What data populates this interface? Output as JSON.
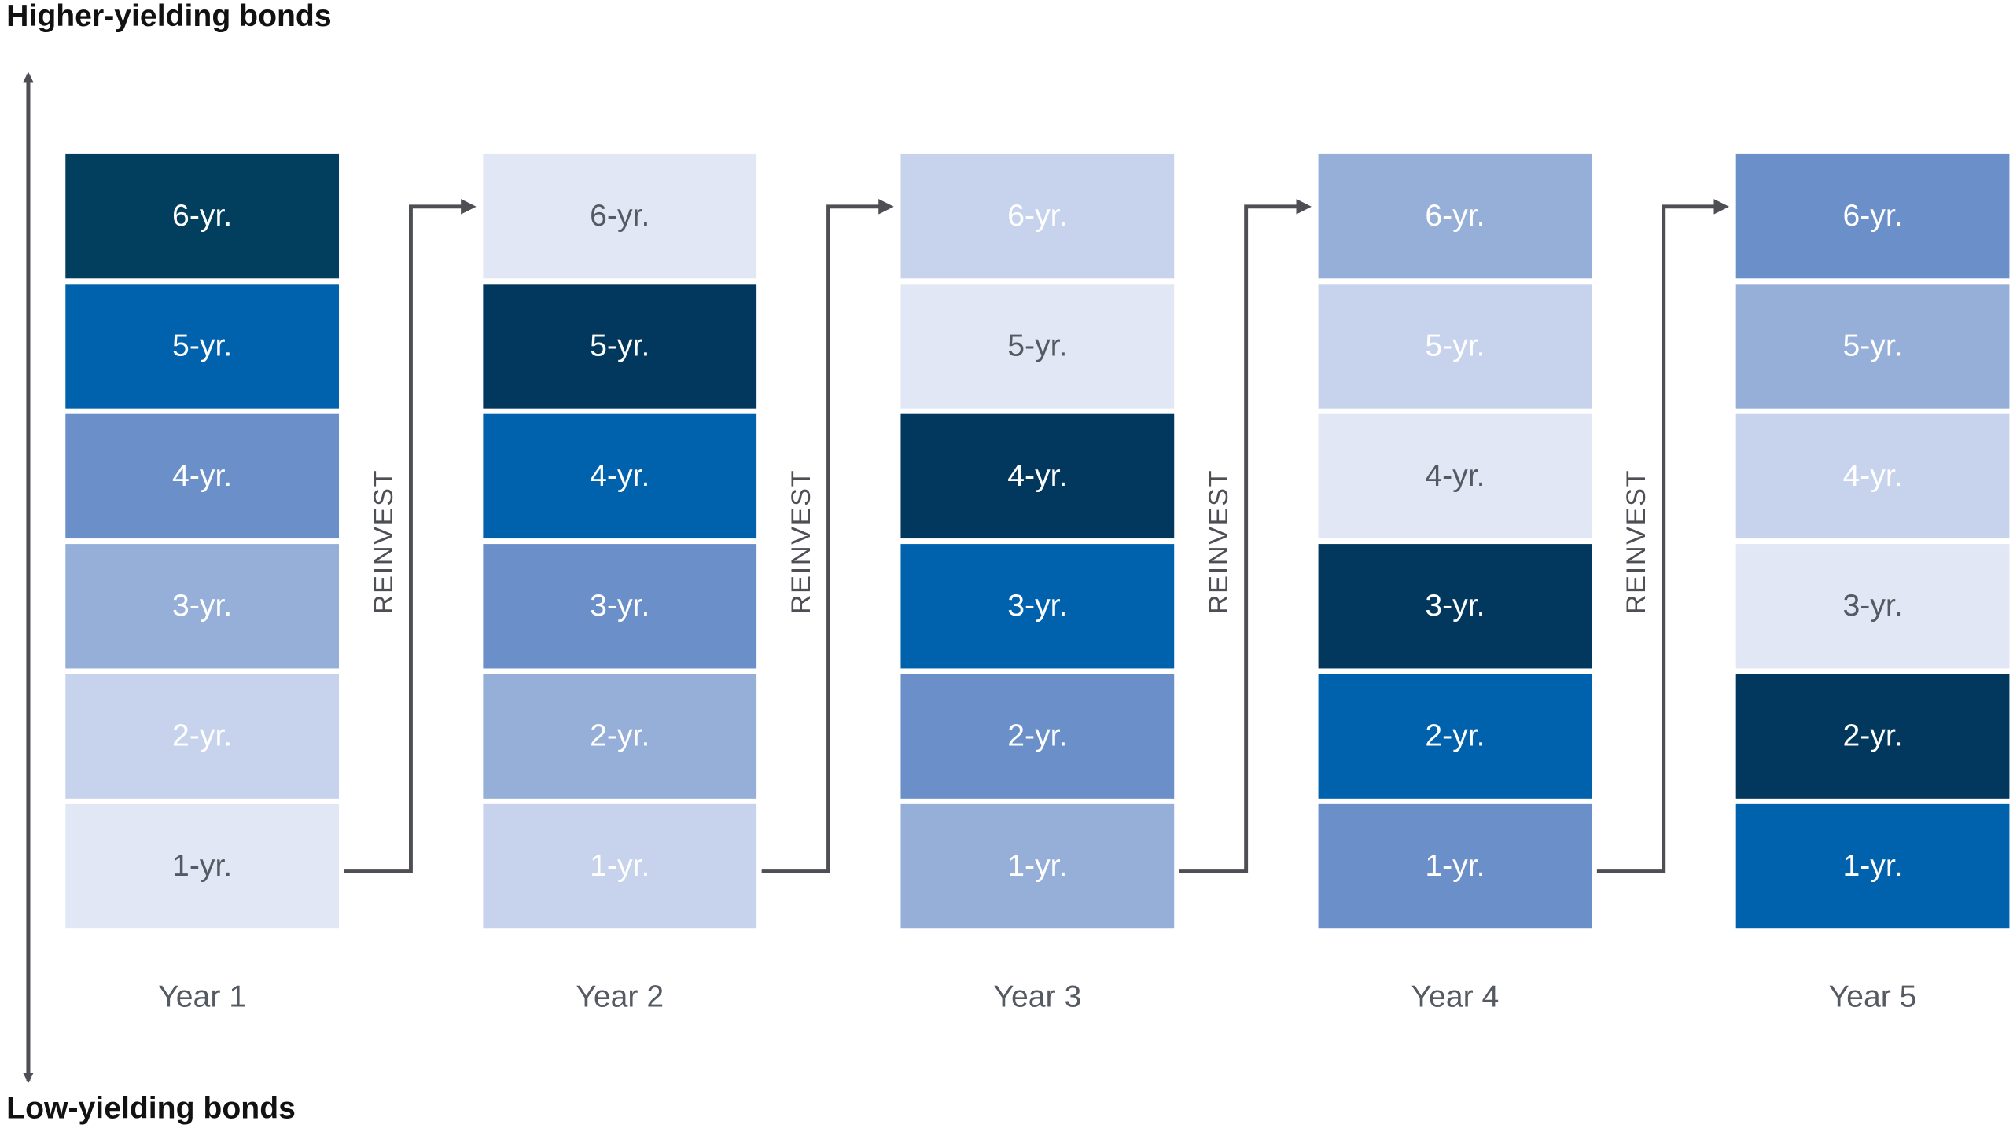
{
  "axis": {
    "top_label": "Higher-yielding bonds",
    "bottom_label": "Low-yielding bonds"
  },
  "columns": [
    {
      "label": "Year 1",
      "blocks": [
        {
          "label": "6-yr.",
          "color": "#023f5f"
        },
        {
          "label": "5-yr.",
          "color": "#0062ad"
        },
        {
          "label": "4-yr.",
          "color": "#6a8fc9"
        },
        {
          "label": "3-yr.",
          "color": "#96afd9"
        },
        {
          "label": "2-yr.",
          "color": "#c7d3ec"
        },
        {
          "label": "1-yr.",
          "color": "#e1e7f4"
        }
      ]
    },
    {
      "label": "Year 2",
      "blocks": [
        {
          "label": "6-yr.",
          "color": "#e1e7f4"
        },
        {
          "label": "5-yr.",
          "color": "#02385e"
        },
        {
          "label": "4-yr.",
          "color": "#0062ad"
        },
        {
          "label": "3-yr.",
          "color": "#6a8fc9"
        },
        {
          "label": "2-yr.",
          "color": "#96afd9"
        },
        {
          "label": "1-yr.",
          "color": "#c7d3ec"
        }
      ]
    },
    {
      "label": "Year 3",
      "blocks": [
        {
          "label": "6-yr.",
          "color": "#c7d3ec"
        },
        {
          "label": "5-yr.",
          "color": "#e1e7f4"
        },
        {
          "label": "4-yr.",
          "color": "#02385e"
        },
        {
          "label": "3-yr.",
          "color": "#0062ad"
        },
        {
          "label": "2-yr.",
          "color": "#6a8fc9"
        },
        {
          "label": "1-yr.",
          "color": "#96afd9"
        }
      ]
    },
    {
      "label": "Year 4",
      "blocks": [
        {
          "label": "6-yr.",
          "color": "#96afd9"
        },
        {
          "label": "5-yr.",
          "color": "#c7d3ec"
        },
        {
          "label": "4-yr.",
          "color": "#e1e7f4"
        },
        {
          "label": "3-yr.",
          "color": "#02385e"
        },
        {
          "label": "2-yr.",
          "color": "#0062ad"
        },
        {
          "label": "1-yr.",
          "color": "#6a8fc9"
        }
      ]
    },
    {
      "label": "Year 5",
      "blocks": [
        {
          "label": "6-yr.",
          "color": "#6a8fc9"
        },
        {
          "label": "5-yr.",
          "color": "#96afd9"
        },
        {
          "label": "4-yr.",
          "color": "#c7d3ec"
        },
        {
          "label": "3-yr.",
          "color": "#e1e7f4"
        },
        {
          "label": "2-yr.",
          "color": "#02385e"
        },
        {
          "label": "1-yr.",
          "color": "#0062ad"
        }
      ]
    }
  ],
  "arrows": [
    {
      "label": "REINVEST"
    },
    {
      "label": "REINVEST"
    },
    {
      "label": "REINVEST"
    },
    {
      "label": "REINVEST"
    }
  ]
}
